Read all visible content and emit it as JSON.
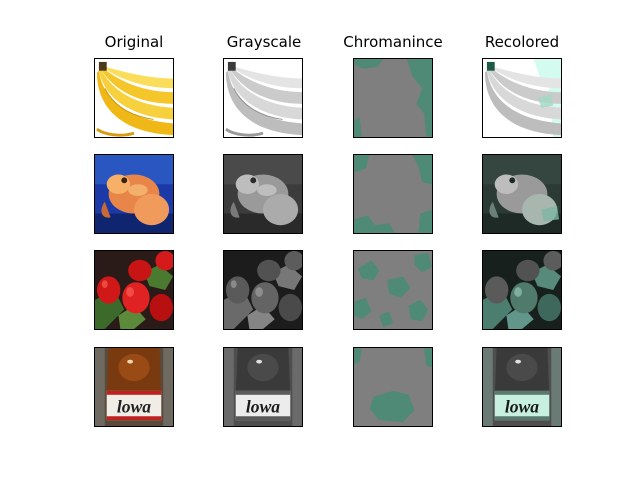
{
  "figure": {
    "columns": [
      {
        "title": "Original"
      },
      {
        "title": "Grayscale"
      },
      {
        "title": "Chromanince"
      },
      {
        "title": "Recolored"
      }
    ],
    "rows": [
      {
        "subject": "bananas"
      },
      {
        "subject": "goldfish"
      },
      {
        "subject": "strawberries"
      },
      {
        "subject": "bottle",
        "label_text": "lowa"
      }
    ]
  }
}
